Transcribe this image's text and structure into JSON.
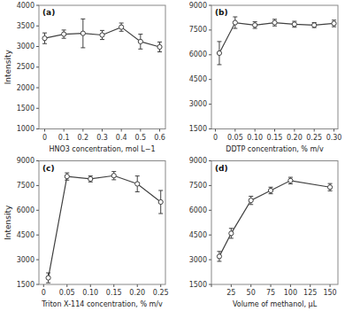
{
  "chart_data": [
    {
      "type": "line",
      "annotation": "(a)",
      "xlabel": "HNO3 concentration, mol L−1",
      "ylabel": "Intensity",
      "x": [
        0,
        0.1,
        0.2,
        0.3,
        0.4,
        0.5,
        0.6
      ],
      "values": [
        3200,
        3300,
        3320,
        3280,
        3470,
        3120,
        2990
      ],
      "errors": [
        130,
        100,
        350,
        110,
        100,
        180,
        120
      ],
      "color": "#404040",
      "marker": "circle",
      "grid": false,
      "xlim": [
        -0.03,
        0.63
      ],
      "xticks": [
        0,
        0.1,
        0.2,
        0.3,
        0.4,
        0.5,
        0.6
      ],
      "ylim": [
        1000,
        4000
      ],
      "yticks": [
        1000,
        1500,
        2000,
        2500,
        3000,
        3500,
        4000
      ]
    },
    {
      "type": "line",
      "annotation": "(b)",
      "xlabel": "DDTP concentration, % m/v",
      "x": [
        0.01,
        0.05,
        0.1,
        0.15,
        0.2,
        0.25,
        0.3
      ],
      "values": [
        6100,
        7950,
        7800,
        7950,
        7850,
        7800,
        7900
      ],
      "errors": [
        700,
        350,
        200,
        200,
        180,
        150,
        200
      ],
      "color": "#404040",
      "marker": "circle",
      "grid": false,
      "xlim": [
        -0.01,
        0.31
      ],
      "xticks": [
        0,
        0.05,
        {
          "value": 0.1,
          "label": "0.10"
        },
        0.15,
        {
          "value": 0.2,
          "label": "0.20"
        },
        0.25,
        {
          "value": 0.3,
          "label": "0.30"
        }
      ],
      "ylim": [
        1500,
        9000
      ],
      "yticks": [
        1500,
        3000,
        4500,
        6000,
        7500,
        9000
      ]
    },
    {
      "type": "line",
      "annotation": "(c)",
      "xlabel": "Triton X-114 concentration, % m/v",
      "ylabel": "Intensity",
      "x": [
        0.01,
        0.05,
        0.1,
        0.15,
        0.2,
        0.25
      ],
      "values": [
        1900,
        8050,
        7900,
        8100,
        7600,
        6500
      ],
      "errors": [
        300,
        220,
        180,
        250,
        480,
        700
      ],
      "color": "#404040",
      "marker": "circle",
      "grid": false,
      "xlim": [
        -0.01,
        0.26
      ],
      "xticks": [
        0,
        0.05,
        {
          "value": 0.1,
          "label": "0.10"
        },
        0.15,
        {
          "value": 0.2,
          "label": "0.20"
        },
        0.25
      ],
      "ylim": [
        1500,
        9000
      ],
      "yticks": [
        1500,
        3000,
        4500,
        6000,
        7500,
        9000
      ]
    },
    {
      "type": "line",
      "annotation": "(d)",
      "xlabel": "Volume  of methanol, μL",
      "x": [
        10,
        25,
        50,
        75,
        100,
        150
      ],
      "values": [
        3200,
        4600,
        6600,
        7200,
        7800,
        7400
      ],
      "errors": [
        300,
        300,
        250,
        200,
        200,
        220
      ],
      "color": "#404040",
      "marker": "circle",
      "grid": false,
      "xlim": [
        0,
        160
      ],
      "xticks": [
        {
          "value": 0,
          "label": null
        },
        25,
        50,
        75,
        100,
        125,
        150
      ],
      "ylim": [
        1500,
        9000
      ],
      "yticks": [
        1500,
        3000,
        4500,
        6000,
        7500,
        9000
      ]
    }
  ]
}
